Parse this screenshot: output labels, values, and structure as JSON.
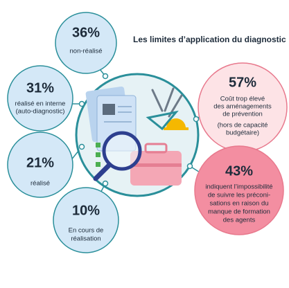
{
  "title": "Les limites d’application du diagnostic :",
  "items": [
    {
      "percent": "36%",
      "lines": [
        "non-réalisé"
      ]
    },
    {
      "percent": "31%",
      "lines": [
        "réalisé en interne",
        "(auto-diagnostic)"
      ]
    },
    {
      "percent": "21%",
      "lines": [
        "réalisé"
      ]
    },
    {
      "percent": "10%",
      "lines": [
        "En cours de",
        "réalisation"
      ]
    },
    {
      "percent": "57%",
      "lines": [
        "Coût trop élevé",
        "des aménagements",
        "de prévention",
        "(hors de capacité",
        "budgétaire)"
      ]
    },
    {
      "percent": "43%",
      "lines": [
        "indiquent l’impossibilité",
        "de suivre les préconi-",
        "sations en raison du",
        "manque de formation",
        "des agents"
      ]
    }
  ]
}
